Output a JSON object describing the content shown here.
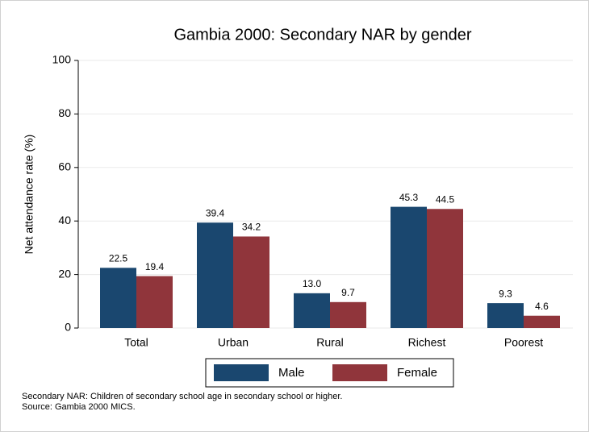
{
  "chart_data": {
    "type": "bar",
    "title": "Gambia 2000: Secondary NAR by gender",
    "y_label": "Net attendance rate (%)",
    "categories": [
      "Total",
      "Urban",
      "Rural",
      "Richest",
      "Poorest"
    ],
    "series": [
      {
        "name": "Male",
        "color": "#1a476f",
        "values": [
          22.5,
          39.4,
          13.0,
          45.3,
          9.3
        ],
        "value_labels": [
          "22.5",
          "39.4",
          "13.0",
          "45.3",
          "9.3"
        ]
      },
      {
        "name": "Female",
        "color": "#90353b",
        "values": [
          19.4,
          34.2,
          9.7,
          44.5,
          4.6
        ],
        "value_labels": [
          "19.4",
          "34.2",
          "9.7",
          "44.5",
          "4.6"
        ]
      }
    ],
    "ylim": [
      0,
      100
    ],
    "yticks": [
      0,
      20,
      40,
      60,
      80,
      100
    ],
    "grid": true,
    "notes": [
      "Secondary NAR: Children of secondary school age in secondary school or higher.",
      "Source: Gambia 2000 MICS."
    ]
  }
}
